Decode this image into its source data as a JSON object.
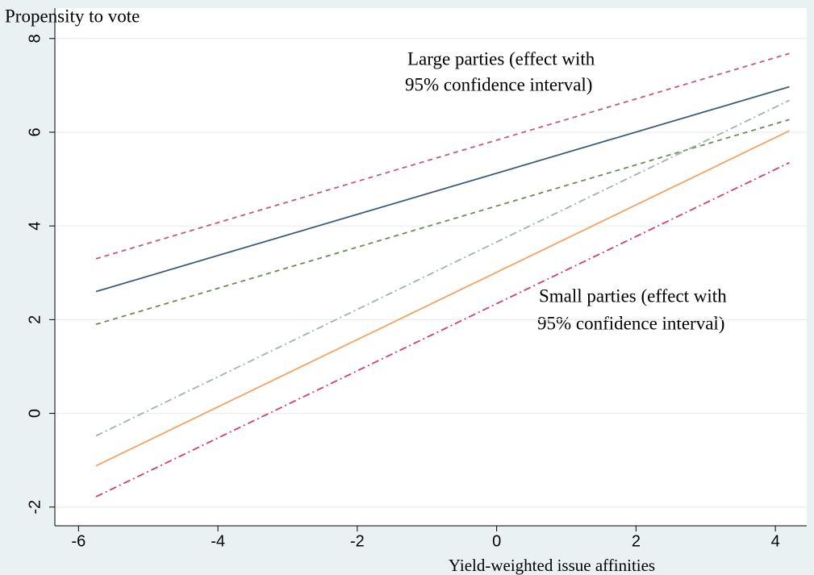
{
  "chart_data": {
    "type": "line",
    "title": "Propensity to vote",
    "x_label": "Yield-weighted issue affinities",
    "annotations": [
      [
        "Large parties (effect with",
        "95% confidence interval)"
      ],
      [
        "Small parties (effect with",
        "95% confidence interval)"
      ]
    ],
    "x": [
      -5.75,
      4.2
    ],
    "series": [
      {
        "color": "#3e5c7a",
        "dash": "none",
        "values": [
          2.6,
          6.97
        ]
      },
      {
        "color": "#c45a78",
        "dash": "6 5",
        "values": [
          3.3,
          7.68
        ]
      },
      {
        "color": "#6f8a55",
        "dash": "6 5",
        "values": [
          1.9,
          6.27
        ]
      },
      {
        "color": "#f4a263",
        "dash": "none",
        "values": [
          -1.12,
          6.03
        ]
      },
      {
        "color": "#9fb5a6",
        "dash": "9 4 2 4",
        "values": [
          -0.48,
          6.68
        ]
      },
      {
        "color": "#d23c72",
        "dash": "9 4 2 4",
        "values": [
          -1.78,
          5.35
        ]
      }
    ],
    "xlim": [
      -6.34,
      4.45
    ],
    "ylim": [
      -2.4,
      8.65
    ],
    "xticks": [
      -6,
      -4,
      -2,
      0,
      2,
      4
    ],
    "yticks": [
      -2,
      0,
      2,
      4,
      6,
      8
    ],
    "grid": true
  }
}
